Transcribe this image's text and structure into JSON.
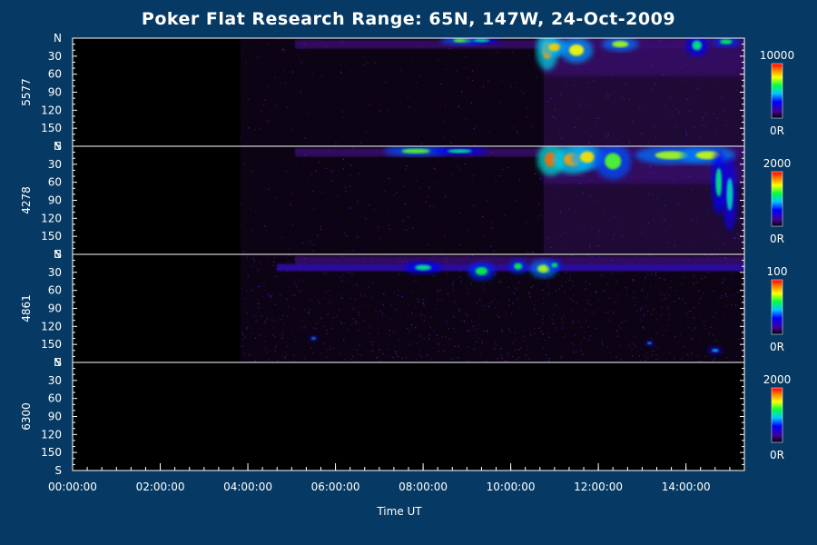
{
  "chart_data": {
    "type": "heatmap",
    "title": "Poker Flat Research Range: 65N, 147W, 24-Oct-2009",
    "xlabel": "Time UT",
    "xlim": [
      "00:00:00",
      "15:20:00"
    ],
    "x_ticks": [
      "00:00:00",
      "02:00:00",
      "04:00:00",
      "06:00:00",
      "08:00:00",
      "10:00:00",
      "12:00:00",
      "14:00:00"
    ],
    "y_ticks": [
      "N",
      "30",
      "60",
      "90",
      "120",
      "150",
      "S"
    ],
    "ylim": [
      0,
      180
    ],
    "colorbar_min_label": "0R",
    "panels": [
      {
        "wavelength": "5577",
        "colorbar_max": "10000",
        "onset": "03:50:00",
        "bright_onset": "10:45:00",
        "blobs": [
          {
            "t": "08:55",
            "a": 4,
            "w": 25,
            "h": 5,
            "level": 0.65
          },
          {
            "t": "09:20",
            "a": 4,
            "w": 20,
            "h": 4,
            "level": 0.55
          },
          {
            "t": "10:50",
            "a": 20,
            "w": 12,
            "h": 22,
            "level": 0.85
          },
          {
            "t": "11:00",
            "a": 15,
            "w": 15,
            "h": 10,
            "level": 0.8
          },
          {
            "t": "11:30",
            "a": 20,
            "w": 18,
            "h": 14,
            "level": 0.75
          },
          {
            "t": "12:30",
            "a": 10,
            "w": 20,
            "h": 8,
            "level": 0.7
          },
          {
            "t": "14:15",
            "a": 12,
            "w": 12,
            "h": 12,
            "level": 0.55
          },
          {
            "t": "14:55",
            "a": 6,
            "w": 15,
            "h": 6,
            "level": 0.6
          }
        ]
      },
      {
        "wavelength": "4278",
        "colorbar_max": "2000",
        "onset": "03:50:00",
        "bright_onset": "10:45:00",
        "blobs": [
          {
            "t": "07:50",
            "a": 8,
            "w": 35,
            "h": 6,
            "level": 0.65
          },
          {
            "t": "08:50",
            "a": 8,
            "w": 30,
            "h": 5,
            "level": 0.55
          },
          {
            "t": "10:55",
            "a": 22,
            "w": 15,
            "h": 18,
            "level": 0.9
          },
          {
            "t": "11:25",
            "a": 22,
            "w": 22,
            "h": 16,
            "level": 0.85
          },
          {
            "t": "11:45",
            "a": 18,
            "w": 18,
            "h": 14,
            "level": 0.78
          },
          {
            "t": "12:20",
            "a": 25,
            "w": 20,
            "h": 20,
            "level": 0.65
          },
          {
            "t": "13:40",
            "a": 15,
            "w": 40,
            "h": 10,
            "level": 0.7
          },
          {
            "t": "14:30",
            "a": 15,
            "w": 30,
            "h": 10,
            "level": 0.72
          },
          {
            "t": "14:45",
            "a": 60,
            "w": 8,
            "h": 35,
            "level": 0.55
          },
          {
            "t": "15:00",
            "a": 80,
            "w": 8,
            "h": 40,
            "level": 0.5
          }
        ]
      },
      {
        "wavelength": "4861",
        "colorbar_max": "100",
        "onset": "03:50:00",
        "band_center": 22,
        "blobs": [
          {
            "t": "05:30",
            "a": 140,
            "w": 5,
            "h": 3,
            "level": 0.5
          },
          {
            "t": "08:00",
            "a": 22,
            "w": 20,
            "h": 7,
            "level": 0.55
          },
          {
            "t": "09:20",
            "a": 28,
            "w": 15,
            "h": 10,
            "level": 0.6
          },
          {
            "t": "10:10",
            "a": 20,
            "w": 10,
            "h": 8,
            "level": 0.6
          },
          {
            "t": "10:45",
            "a": 24,
            "w": 15,
            "h": 10,
            "level": 0.7
          },
          {
            "t": "11:00",
            "a": 18,
            "w": 8,
            "h": 6,
            "level": 0.6
          },
          {
            "t": "13:10",
            "a": 148,
            "w": 5,
            "h": 3,
            "level": 0.45
          },
          {
            "t": "14:40",
            "a": 160,
            "w": 8,
            "h": 4,
            "level": 0.45
          }
        ]
      },
      {
        "wavelength": "6300",
        "colorbar_max": "2000",
        "blobs": []
      }
    ]
  }
}
